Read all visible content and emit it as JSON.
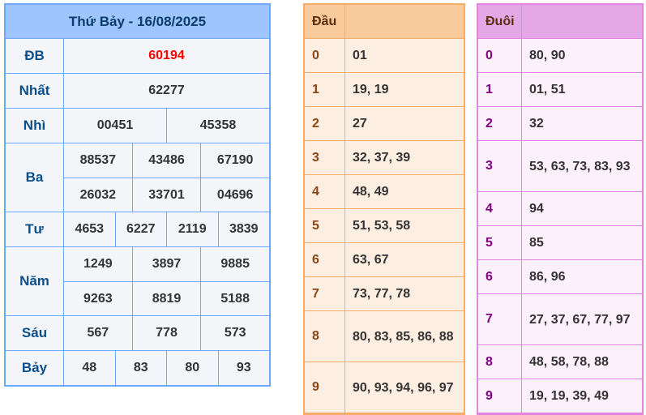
{
  "results": {
    "title": "Thứ Bảy - 16/08/2025",
    "colors": {
      "special": "#ff0000",
      "header_bg": "#9ec5fe",
      "border": "#6ea8fe"
    },
    "prizes": [
      {
        "label": "ĐB",
        "rows": [
          [
            "60194"
          ]
        ],
        "special": true
      },
      {
        "label": "Nhất",
        "rows": [
          [
            "62277"
          ]
        ]
      },
      {
        "label": "Nhì",
        "rows": [
          [
            "00451",
            "45358"
          ]
        ]
      },
      {
        "label": "Ba",
        "rows": [
          [
            "88537",
            "43486",
            "67190"
          ],
          [
            "26032",
            "33701",
            "04696"
          ]
        ]
      },
      {
        "label": "Tư",
        "rows": [
          [
            "4653",
            "6227",
            "2119",
            "3839"
          ]
        ]
      },
      {
        "label": "Năm",
        "rows": [
          [
            "1249",
            "3897",
            "9885"
          ],
          [
            "9263",
            "8819",
            "5188"
          ]
        ]
      },
      {
        "label": "Sáu",
        "rows": [
          [
            "567",
            "778",
            "573"
          ]
        ]
      },
      {
        "label": "Bảy",
        "rows": [
          [
            "48",
            "83",
            "80",
            "93"
          ]
        ]
      }
    ]
  },
  "dau": {
    "header": "Đầu",
    "rows": [
      {
        "key": "0",
        "values": "01"
      },
      {
        "key": "1",
        "values": "19, 19"
      },
      {
        "key": "2",
        "values": "27"
      },
      {
        "key": "3",
        "values": "32, 37, 39"
      },
      {
        "key": "4",
        "values": "48, 49"
      },
      {
        "key": "5",
        "values": "51, 53, 58"
      },
      {
        "key": "6",
        "values": "63, 67"
      },
      {
        "key": "7",
        "values": "73, 77, 78"
      },
      {
        "key": "8",
        "values": "80, 83, 85, 86, 88"
      },
      {
        "key": "9",
        "values": "90, 93, 94, 96, 97"
      }
    ]
  },
  "duoi": {
    "header": "Đuôi",
    "rows": [
      {
        "key": "0",
        "values": "80, 90"
      },
      {
        "key": "1",
        "values": "01, 51"
      },
      {
        "key": "2",
        "values": "32"
      },
      {
        "key": "3",
        "values": "53, 63, 73, 83, 93"
      },
      {
        "key": "4",
        "values": "94"
      },
      {
        "key": "5",
        "values": "85"
      },
      {
        "key": "6",
        "values": "86, 96"
      },
      {
        "key": "7",
        "values": "27, 37, 67, 77, 97"
      },
      {
        "key": "8",
        "values": "48, 58, 78, 88"
      },
      {
        "key": "9",
        "values": "19, 19, 39, 49"
      }
    ]
  }
}
